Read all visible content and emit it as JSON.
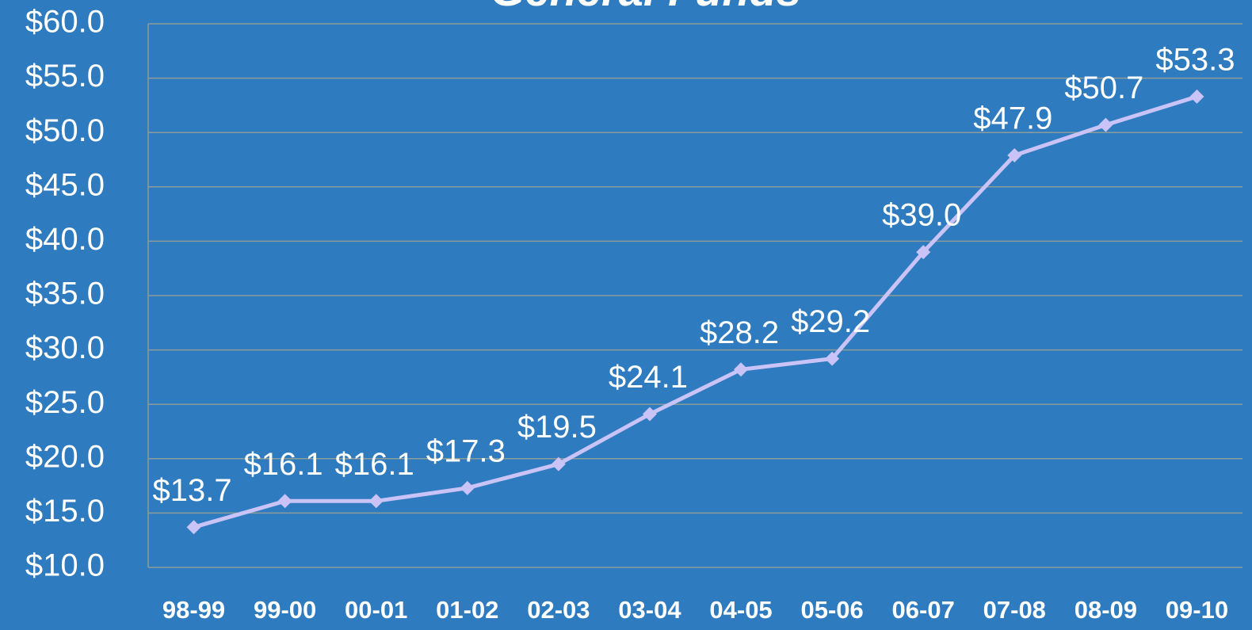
{
  "chart_data": {
    "type": "line",
    "title": "General Funds",
    "categories": [
      "98-99",
      "99-00",
      "00-01",
      "01-02",
      "02-03",
      "03-04",
      "04-05",
      "05-06",
      "06-07",
      "07-08",
      "08-09",
      "09-10"
    ],
    "series": [
      {
        "name": "General Funds",
        "color": "#c9c3f7",
        "values": [
          13.7,
          16.1,
          16.1,
          17.3,
          19.5,
          24.1,
          28.2,
          29.2,
          39.0,
          47.9,
          50.7,
          53.3
        ],
        "value_labels": [
          "$13.7",
          "$16.1",
          "$16.1",
          "$17.3",
          "$19.5",
          "$24.1",
          "$28.2",
          "$29.2",
          "$39.0",
          "$47.9",
          "$50.7",
          "$53.3"
        ]
      }
    ],
    "ylim": [
      10,
      60
    ],
    "yticks": [
      {
        "value": 10,
        "label": "$10.0"
      },
      {
        "value": 15,
        "label": "$15.0"
      },
      {
        "value": 20,
        "label": "$20.0"
      },
      {
        "value": 25,
        "label": "$25.0"
      },
      {
        "value": 30,
        "label": "$30.0"
      },
      {
        "value": 35,
        "label": "$35.0"
      },
      {
        "value": 40,
        "label": "$40.0"
      },
      {
        "value": 45,
        "label": "$45.0"
      },
      {
        "value": 50,
        "label": "$50.0"
      },
      {
        "value": 55,
        "label": "$55.0"
      },
      {
        "value": 60,
        "label": "$60.0"
      }
    ],
    "grid": true
  }
}
